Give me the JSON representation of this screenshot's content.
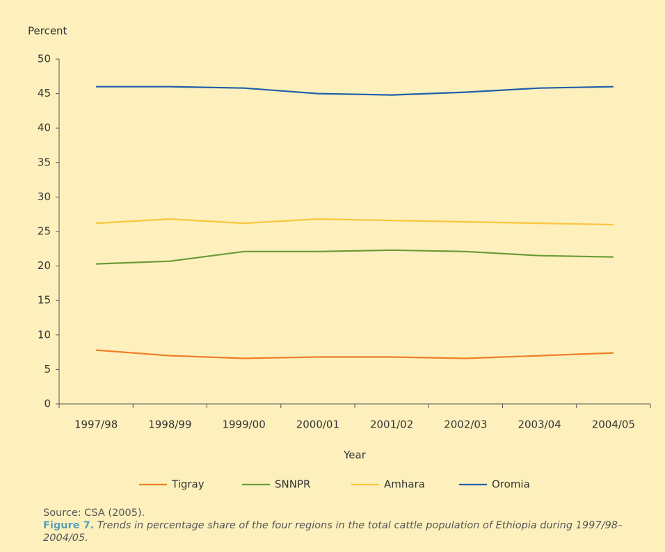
{
  "chart_data": {
    "type": "line",
    "y_label": "Percent",
    "x_label": "Year",
    "categories": [
      "1997/98",
      "1998/99",
      "1999/00",
      "2000/01",
      "2001/02",
      "2002/03",
      "2003/04",
      "2004/05"
    ],
    "series": [
      {
        "name": "Tigray",
        "color": "#f07e26",
        "values": [
          7.8,
          7.0,
          6.6,
          6.8,
          6.8,
          6.6,
          7.0,
          7.4
        ]
      },
      {
        "name": "SNNPR",
        "color": "#6a9a34",
        "values": [
          20.3,
          20.7,
          22.1,
          22.1,
          22.3,
          22.1,
          21.5,
          21.3
        ]
      },
      {
        "name": "Amhara",
        "color": "#fbc53c",
        "values": [
          26.2,
          26.8,
          26.2,
          26.8,
          26.6,
          26.4,
          26.2,
          26.0
        ]
      },
      {
        "name": "Oromia",
        "color": "#1f5ea8",
        "values": [
          46.0,
          46.0,
          45.8,
          45.0,
          44.8,
          45.2,
          45.8,
          46.0
        ]
      }
    ],
    "ylim": [
      0,
      50
    ],
    "yticks": [
      0,
      5,
      10,
      15,
      20,
      25,
      30,
      35,
      40,
      45,
      50
    ],
    "grid": false,
    "legend": "bottom"
  },
  "caption": {
    "source": "Source: CSA (2005).",
    "figure_label": "Figure 7.",
    "figure_text": "Trends in percentage share of the four regions in the total cattle population of Ethiopia during 1997/98–2004/05."
  }
}
